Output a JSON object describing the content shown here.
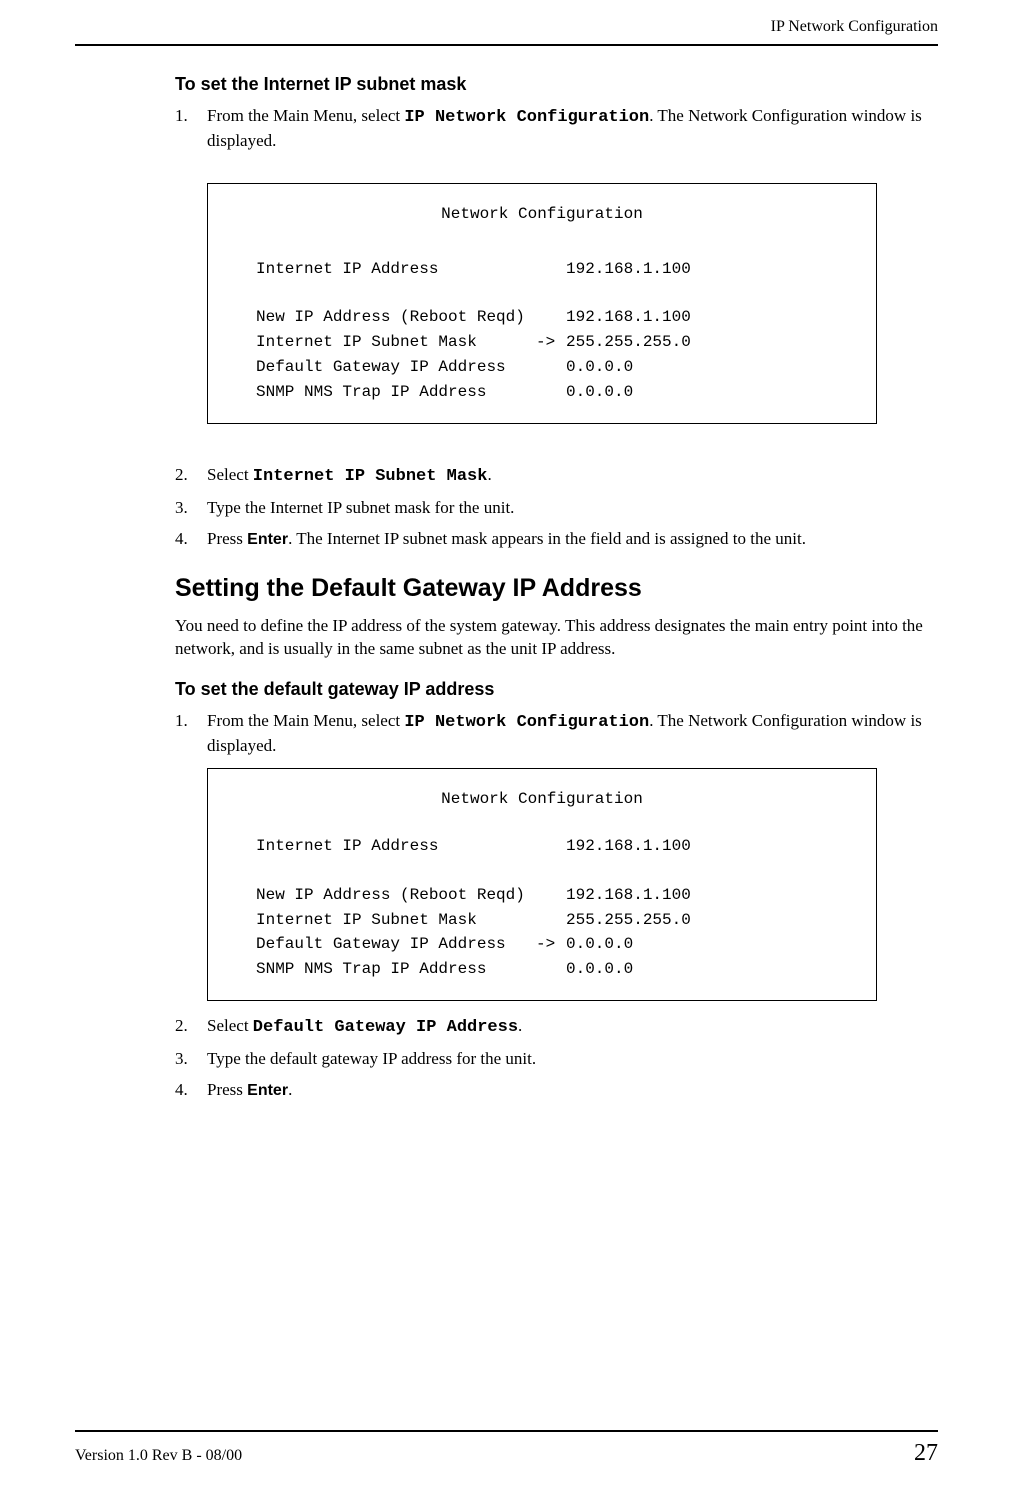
{
  "header": {
    "title": "IP Network Configuration"
  },
  "section1": {
    "task_heading": "To set the Internet IP subnet mask",
    "step1_pre": "From the Main Menu, select ",
    "step1_mono": "IP Network Configuration",
    "step1_post": ". The Network Configuration window is displayed.",
    "step2_pre": "Select ",
    "step2_mono": "Internet IP Subnet Mask",
    "step2_post": ".",
    "step3": "Type the Internet IP subnet mask for the unit.",
    "step4_pre": "Press ",
    "step4_bold": "Enter",
    "step4_post": ". The Internet IP subnet mask appears in the field and is assigned to the unit."
  },
  "terminal1": {
    "title": "Network Configuration",
    "rows": [
      {
        "label": "Internet IP Address",
        "arrow": "",
        "value": "192.168.1.100",
        "gap_after": true
      },
      {
        "label": "New IP Address (Reboot Reqd)",
        "arrow": "",
        "value": "192.168.1.100"
      },
      {
        "label": "Internet IP Subnet Mask",
        "arrow": "->",
        "value": "255.255.255.0"
      },
      {
        "label": "Default Gateway IP Address",
        "arrow": "",
        "value": "0.0.0.0"
      },
      {
        "label": "SNMP NMS Trap IP Address",
        "arrow": "",
        "value": "0.0.0.0"
      }
    ]
  },
  "section2": {
    "heading": "Setting the Default Gateway IP Address",
    "intro": "You need to define the IP address of the system gateway. This address designates the main entry point into the network, and is usually in the same subnet as the unit IP address.",
    "task_heading": "To set the default gateway IP address",
    "step1_pre": "From the Main Menu, select ",
    "step1_mono": "IP Network Configuration",
    "step1_post": ". The Network Configuration window is displayed.",
    "step2_pre": "Select ",
    "step2_mono": "Default Gateway IP Address",
    "step2_post": ".",
    "step3": "Type the default gateway IP address for the unit.",
    "step4_pre": "Press ",
    "step4_bold": "Enter",
    "step4_post": "."
  },
  "terminal2": {
    "title": "Network Configuration",
    "rows": [
      {
        "label": "Internet IP Address",
        "arrow": "",
        "value": "192.168.1.100",
        "gap_after": true
      },
      {
        "label": "New IP Address (Reboot Reqd)",
        "arrow": "",
        "value": "192.168.1.100"
      },
      {
        "label": "Internet IP Subnet Mask",
        "arrow": "",
        "value": "255.255.255.0"
      },
      {
        "label": "Default Gateway IP Address",
        "arrow": "->",
        "value": "0.0.0.0"
      },
      {
        "label": "SNMP NMS Trap IP Address",
        "arrow": "",
        "value": "0.0.0.0"
      }
    ]
  },
  "footer": {
    "version": "Version 1.0 Rev B - 08/00",
    "page": "27"
  }
}
